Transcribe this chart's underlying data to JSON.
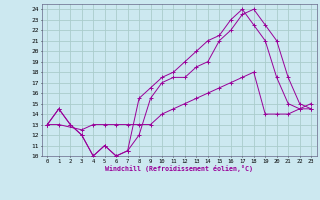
{
  "xlabel": "Windchill (Refroidissement éolien,°C)",
  "bg_color": "#cce8f0",
  "grid_color": "#aacccc",
  "line_color": "#990099",
  "xlim": [
    -0.5,
    23.5
  ],
  "ylim": [
    10,
    24.5
  ],
  "xticks": [
    0,
    1,
    2,
    3,
    4,
    5,
    6,
    7,
    8,
    9,
    10,
    11,
    12,
    13,
    14,
    15,
    16,
    17,
    18,
    19,
    20,
    21,
    22,
    23
  ],
  "yticks": [
    10,
    11,
    12,
    13,
    14,
    15,
    16,
    17,
    18,
    19,
    20,
    21,
    22,
    23,
    24
  ],
  "line1_x": [
    0,
    1,
    2,
    3,
    4,
    5,
    6,
    7,
    8,
    9,
    10,
    11,
    12,
    13,
    14,
    15,
    16,
    17,
    18,
    19,
    20,
    21,
    22,
    23
  ],
  "line1_y": [
    13,
    14.5,
    13,
    12,
    10,
    11,
    10,
    10.5,
    12,
    15.5,
    17,
    17.5,
    17.5,
    18.5,
    19,
    21,
    22,
    23.5,
    24,
    22.5,
    21,
    17.5,
    15,
    14.5
  ],
  "line2_x": [
    0,
    1,
    3,
    4,
    5,
    6,
    7,
    8,
    9,
    10,
    11,
    12,
    13,
    14,
    15,
    16,
    17,
    18,
    19,
    20,
    21,
    22,
    23
  ],
  "line2_y": [
    13,
    13,
    12.5,
    13,
    13,
    13,
    13,
    13,
    13,
    14,
    14.5,
    15,
    15.5,
    16,
    16.5,
    17,
    17.5,
    18,
    14,
    14,
    14,
    14.5,
    15
  ],
  "line3_x": [
    0,
    1,
    2,
    3,
    4,
    5,
    6,
    7,
    8,
    9,
    10,
    11,
    12,
    13,
    14,
    15,
    16,
    17,
    18,
    19,
    20,
    21,
    22,
    23
  ],
  "line3_y": [
    13,
    14.5,
    13,
    12,
    10,
    11,
    10,
    10.5,
    15.5,
    16.5,
    17.5,
    18,
    19,
    20,
    21,
    21.5,
    23,
    24,
    22.5,
    21,
    17.5,
    15,
    14.5,
    14.5
  ]
}
